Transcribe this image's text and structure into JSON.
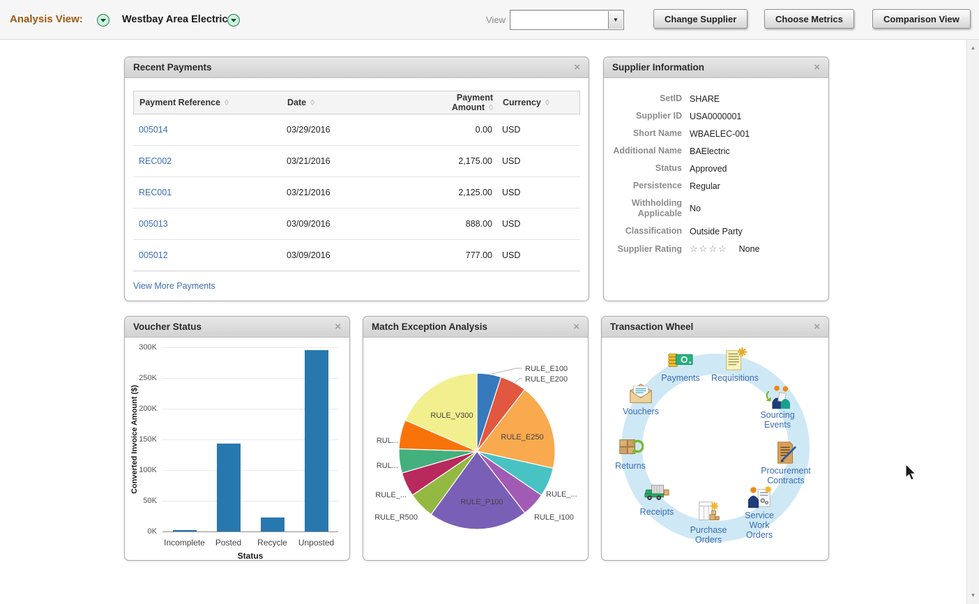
{
  "header": {
    "analysis_view_label": "Analysis View:",
    "supplier_name": "Westbay Area Electric-",
    "view_label": "View",
    "view_value": "",
    "change_supplier": "Change Supplier",
    "choose_metrics": "Choose Metrics",
    "comparison_view": "Comparison View"
  },
  "icons": {
    "close": "×",
    "sort": "◊",
    "scroll_up": "▲",
    "scroll_down": "▼",
    "combo_arrow": "▼"
  },
  "recent_payments": {
    "title": "Recent Payments",
    "columns": [
      "Payment Reference",
      "Date",
      "Payment Amount",
      "Currency"
    ],
    "rows": [
      {
        "reference": "005014",
        "date": "03/29/2016",
        "amount": "0.00",
        "currency": "USD"
      },
      {
        "reference": "REC002",
        "date": "03/21/2016",
        "amount": "2,175.00",
        "currency": "USD"
      },
      {
        "reference": "REC001",
        "date": "03/21/2016",
        "amount": "2,125.00",
        "currency": "USD"
      },
      {
        "reference": "005013",
        "date": "03/09/2016",
        "amount": "888.00",
        "currency": "USD"
      },
      {
        "reference": "005012",
        "date": "03/09/2016",
        "amount": "777.00",
        "currency": "USD"
      }
    ],
    "view_more": "View More Payments"
  },
  "supplier_info": {
    "title": "Supplier Information",
    "fields": [
      {
        "label": "SetID",
        "value": "SHARE"
      },
      {
        "label": "Supplier ID",
        "value": "USA0000001"
      },
      {
        "label": "Short Name",
        "value": "WBAELEC-001"
      },
      {
        "label": "Additional Name",
        "value": "BAElectric"
      },
      {
        "label": "Status",
        "value": "Approved"
      },
      {
        "label": "Persistence",
        "value": "Regular"
      },
      {
        "label": "Withholding Applicable",
        "value": "No"
      },
      {
        "label": "Classification",
        "value": "Outside Party"
      },
      {
        "label": "Supplier Rating",
        "value": "None",
        "stars": "☆☆☆☆"
      }
    ]
  },
  "chart_data": [
    {
      "type": "bar",
      "title": "Voucher Status",
      "categories": [
        "Incomplete",
        "Posted",
        "Recycle",
        "Unposted"
      ],
      "values": [
        2000,
        143000,
        23000,
        295000
      ],
      "xlabel": "Status",
      "ylabel": "Converted Invoice Amount ($)",
      "ylim": [
        0,
        300000
      ],
      "yticks": [
        "0K",
        "50K",
        "100K",
        "150K",
        "200K",
        "250K",
        "300K"
      ],
      "grid": true,
      "bar_color": "#2878b0"
    },
    {
      "type": "pie",
      "title": "Match Exception Analysis",
      "slices": [
        {
          "label": "RULE_E100",
          "pct": 5,
          "color": "#3679bd"
        },
        {
          "label": "RULE_E200",
          "pct": 5.5,
          "color": "#e2573f"
        },
        {
          "label": "RULE_E250",
          "pct": 18,
          "color": "#f9a94e"
        },
        {
          "label": "RULE_...",
          "pct": 6,
          "color": "#49c2c4"
        },
        {
          "label": "RULE_I100",
          "pct": 5,
          "color": "#a25bb5"
        },
        {
          "label": "RULE_P100",
          "pct": 20.5,
          "color": "#7a5fb7"
        },
        {
          "label": "RULE_R500",
          "pct": 5.5,
          "color": "#94b942"
        },
        {
          "label": "RULE_...",
          "pct": 5,
          "color": "#b8295e"
        },
        {
          "label": "RUL...",
          "pct": 5,
          "color": "#43b07e"
        },
        {
          "label": "RUL...",
          "pct": 6,
          "color": "#f8730a"
        },
        {
          "label": "RULE_V300",
          "pct": 18.5,
          "color": "#f2ef8e"
        }
      ]
    }
  ],
  "transaction_wheel": {
    "title": "Transaction Wheel",
    "ring_color": "#cfe8f5",
    "items": [
      {
        "label": "Payments",
        "icon": "payments-icon"
      },
      {
        "label": "Requisitions",
        "icon": "requisitions-icon"
      },
      {
        "label": "Sourcing Events",
        "icon": "sourcing-events-icon"
      },
      {
        "label": "Procurement Contracts",
        "icon": "procurement-contracts-icon"
      },
      {
        "label": "Service Work Orders",
        "icon": "service-work-orders-icon"
      },
      {
        "label": "Purchase Orders",
        "icon": "purchase-orders-icon"
      },
      {
        "label": "Receipts",
        "icon": "receipts-icon"
      },
      {
        "label": "Returns",
        "icon": "returns-icon"
      },
      {
        "label": "Vouchers",
        "icon": "vouchers-icon"
      }
    ]
  }
}
